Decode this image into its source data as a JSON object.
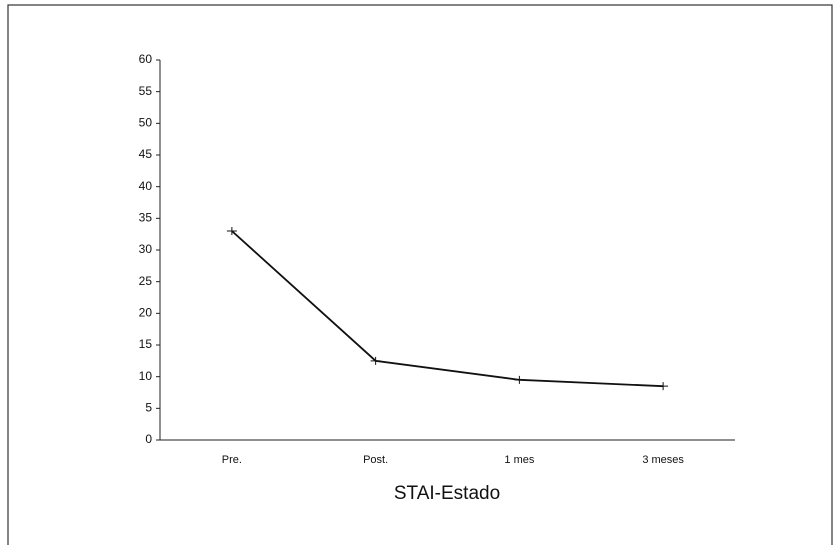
{
  "chart_data": {
    "type": "line",
    "x_label": "STAI-Estado",
    "categories": [
      "Pre.",
      "Post.",
      "1 mes",
      "3 meses"
    ],
    "values": [
      33,
      12.5,
      9.5,
      8.5
    ],
    "color": "#111111",
    "ylim": [
      0,
      60
    ],
    "yticks": [
      0,
      5,
      10,
      15,
      20,
      25,
      30,
      35,
      40,
      45,
      50,
      55,
      60
    ],
    "grid": false
  }
}
